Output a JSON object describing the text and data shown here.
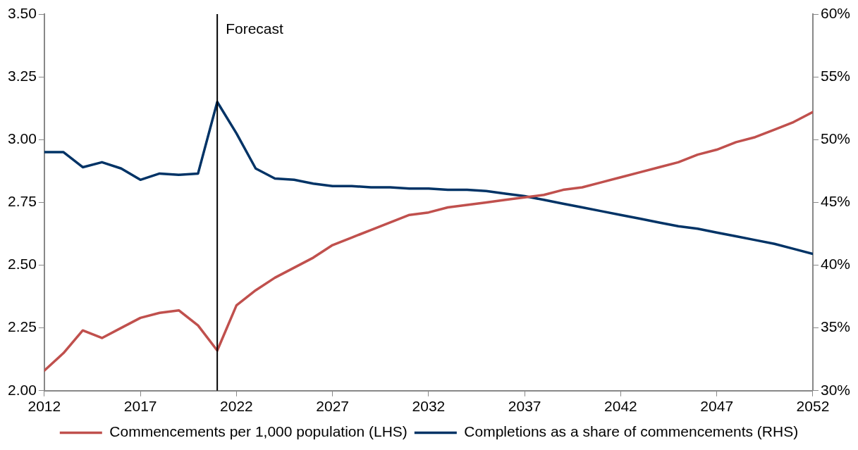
{
  "chart_data": {
    "type": "line",
    "x": [
      2012,
      2013,
      2014,
      2015,
      2016,
      2017,
      2018,
      2019,
      2020,
      2021,
      2022,
      2023,
      2024,
      2025,
      2026,
      2027,
      2028,
      2029,
      2030,
      2031,
      2032,
      2033,
      2034,
      2035,
      2036,
      2037,
      2038,
      2039,
      2040,
      2041,
      2042,
      2043,
      2044,
      2045,
      2046,
      2047,
      2048,
      2049,
      2050,
      2051,
      2052
    ],
    "series": [
      {
        "name": "Commencements per 1,000 population (LHS)",
        "color": "#c0504d",
        "values": [
          2.08,
          2.15,
          2.24,
          2.21,
          2.25,
          2.29,
          2.31,
          2.32,
          2.26,
          2.16,
          2.34,
          2.4,
          2.45,
          2.49,
          2.53,
          2.58,
          2.61,
          2.64,
          2.67,
          2.7,
          2.71,
          2.73,
          2.74,
          2.75,
          2.76,
          2.77,
          2.78,
          2.8,
          2.81,
          2.83,
          2.85,
          2.87,
          2.89,
          2.91,
          2.94,
          2.96,
          2.99,
          3.01,
          3.04,
          3.07,
          3.11
        ]
      },
      {
        "name": "Completions as a share of commencements (RHS)",
        "color": "#003366",
        "axis": "y2",
        "values": [
          49.0,
          49.0,
          47.8,
          48.2,
          47.7,
          46.8,
          47.3,
          47.2,
          47.3,
          53.0,
          50.5,
          47.7,
          46.9,
          46.8,
          46.5,
          46.3,
          46.3,
          46.2,
          46.2,
          46.1,
          46.1,
          46.0,
          46.0,
          45.9,
          45.7,
          45.5,
          45.2,
          44.9,
          44.6,
          44.3,
          44.0,
          43.7,
          43.4,
          43.1,
          42.9,
          42.6,
          42.3,
          42.0,
          41.7,
          41.3,
          40.9
        ]
      }
    ],
    "xlim": [
      2012,
      2052
    ],
    "xticks": [
      2012,
      2017,
      2022,
      2027,
      2032,
      2037,
      2042,
      2047,
      2052
    ],
    "ylim": [
      2,
      3.5
    ],
    "yticks": [
      {
        "value": 2,
        "label": "2.00"
      },
      {
        "value": 2.25,
        "label": "2.25"
      },
      {
        "value": 2.5,
        "label": "2.50"
      },
      {
        "value": 2.75,
        "label": "2.75"
      },
      {
        "value": 3,
        "label": "3.00"
      },
      {
        "value": 3.25,
        "label": "3.25"
      },
      {
        "value": 3.5,
        "label": "3.50"
      }
    ],
    "y2lim": [
      30,
      60
    ],
    "y2ticks": [
      {
        "value": 30,
        "label": "30%"
      },
      {
        "value": 35,
        "label": "35%"
      },
      {
        "value": 40,
        "label": "40%"
      },
      {
        "value": 45,
        "label": "45%"
      },
      {
        "value": 50,
        "label": "50%"
      },
      {
        "value": 55,
        "label": "55%"
      },
      {
        "value": 60,
        "label": "60%"
      }
    ],
    "ref_lines": [
      {
        "axis": "x",
        "value": 2021,
        "label": "Forecast",
        "color": "#000000"
      }
    ],
    "grid": false,
    "legend": "bottom",
    "marker": "none",
    "line_style": "solid"
  }
}
